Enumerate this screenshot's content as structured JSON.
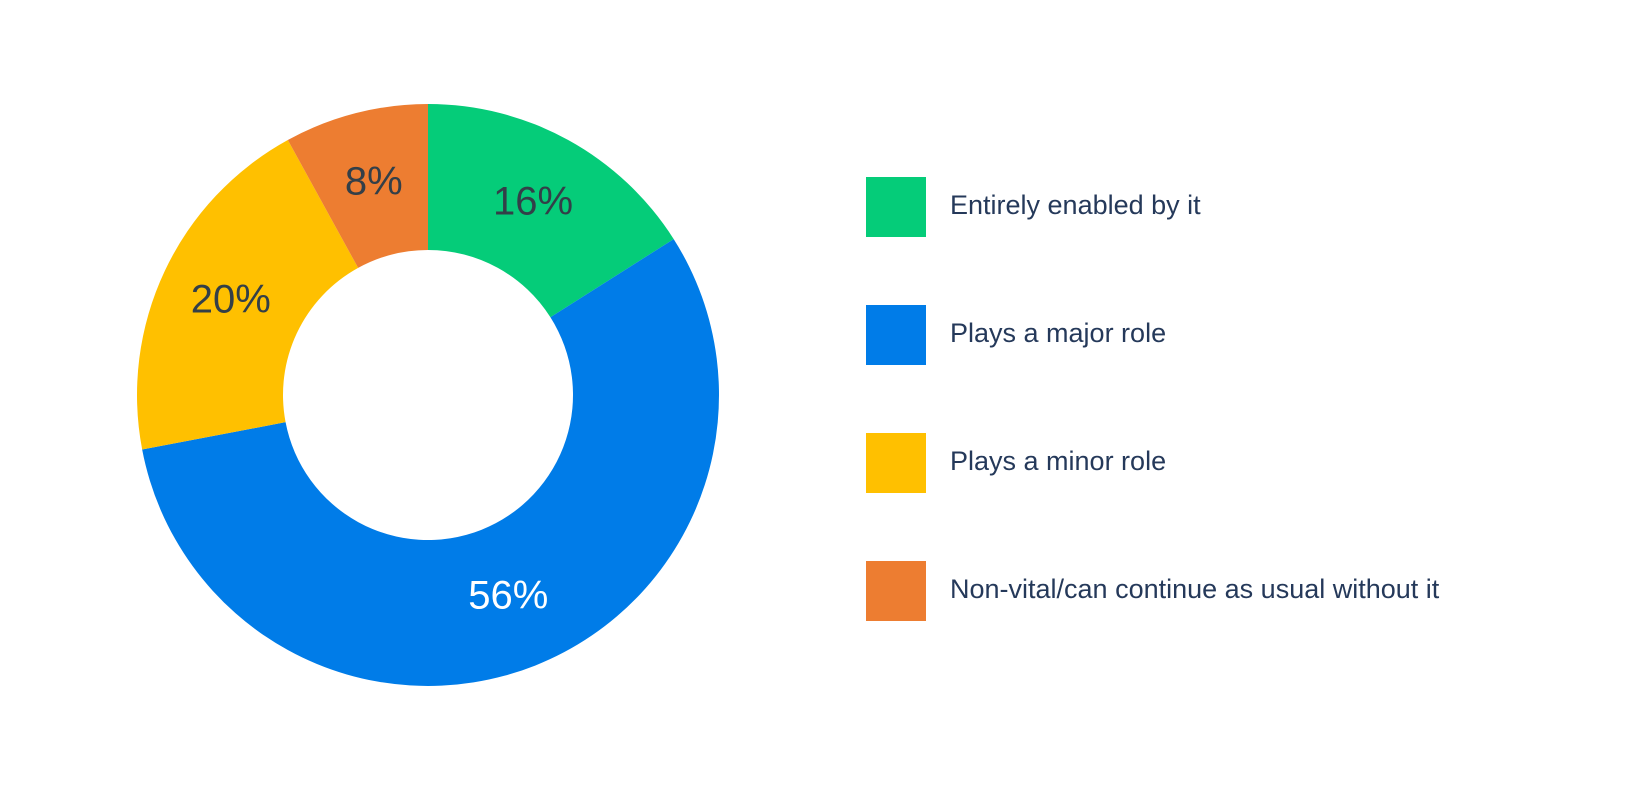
{
  "chart_data": {
    "type": "donut",
    "categories": [
      "Entirely enabled by it",
      "Plays a major role",
      "Plays a minor role",
      "Non-vital/can continue as usual without it"
    ],
    "values": [
      16,
      56,
      20,
      8
    ],
    "value_labels": [
      "16%",
      "56%",
      "20%",
      "8%"
    ],
    "colors": [
      "#05cc79",
      "#007ce8",
      "#ffc000",
      "#ed7d31"
    ],
    "label_colors": [
      "#333f48",
      "#ffffff",
      "#333f48",
      "#333f48"
    ]
  }
}
